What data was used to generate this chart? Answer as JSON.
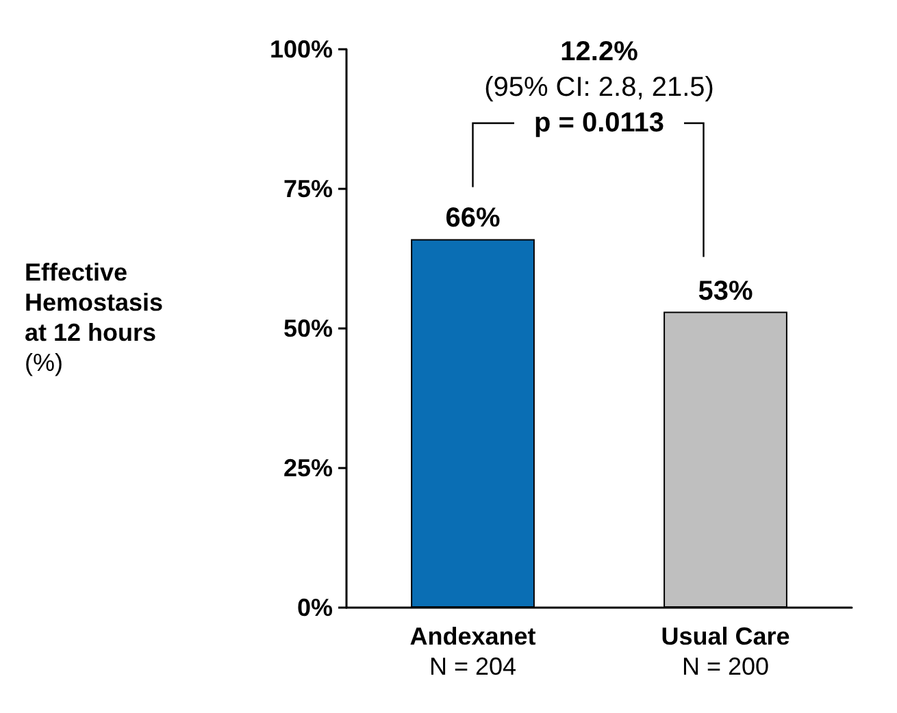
{
  "chart_data": {
    "type": "bar",
    "categories": [
      "Andexanet\nN = 204",
      "Usual Care\nN = 200"
    ],
    "values": [
      66,
      53
    ],
    "colors": [
      "#0a6eb4",
      "#bfbfbf"
    ],
    "ylabel": "Effective\nHemostasis\nat 12 hours\n(%)",
    "ylim": [
      0,
      100
    ],
    "yticks": [
      {
        "value": 0,
        "label": "0%"
      },
      {
        "value": 25,
        "label": "25%"
      },
      {
        "value": 50,
        "label": "50%"
      },
      {
        "value": 75,
        "label": "75%"
      },
      {
        "value": 100,
        "label": "100%"
      }
    ],
    "value_labels": [
      "66%",
      "53%"
    ],
    "annotations": [
      "12.2%",
      "(95% CI: 2.8, 21.5)",
      "p = 0.0113"
    ],
    "grid": false
  }
}
